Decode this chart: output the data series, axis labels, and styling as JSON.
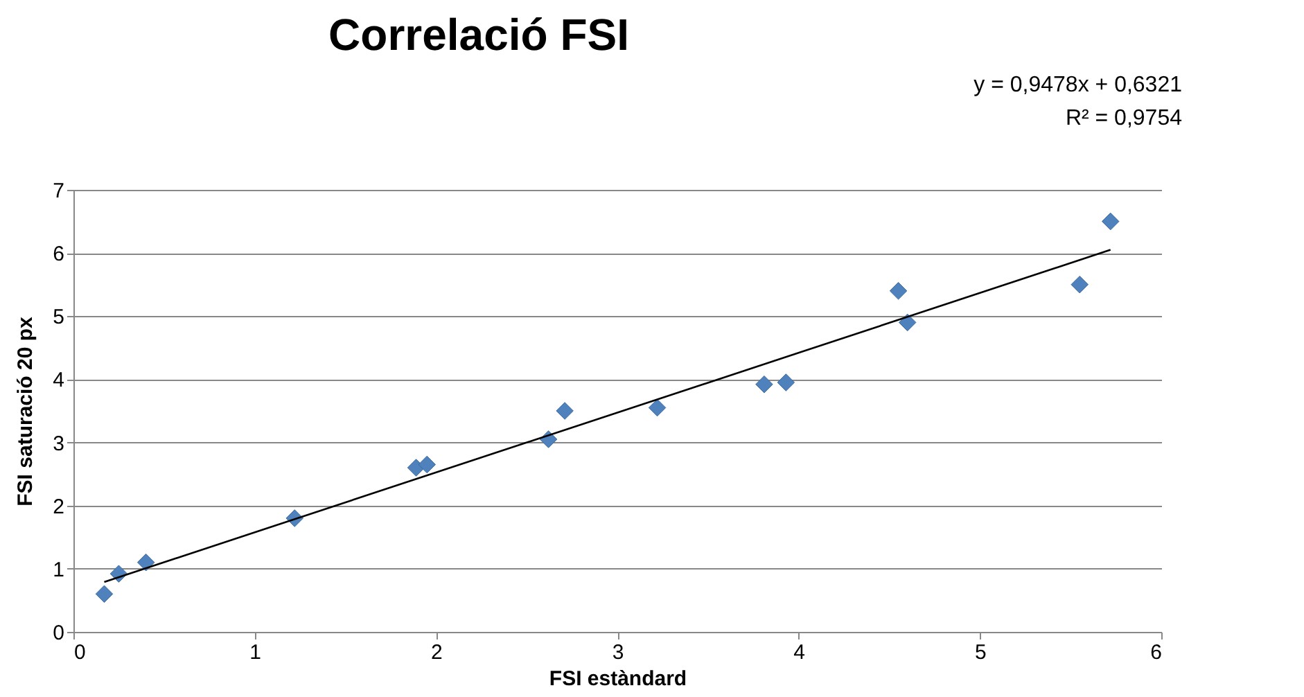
{
  "chart_data": {
    "type": "scatter",
    "title": "Correlació FSI",
    "xlabel": "FSI estàndard",
    "ylabel": "FSI saturació 20 px",
    "annotations": [
      "y = 0,9478x + 0,6321",
      "R² = 0,9754"
    ],
    "xlim": [
      0,
      6
    ],
    "xticks": [
      0,
      1,
      2,
      3,
      4,
      5,
      6
    ],
    "ylim": [
      0,
      7
    ],
    "yticks": [
      0,
      1,
      2,
      3,
      4,
      5,
      6,
      7
    ],
    "grid": "y",
    "marker": "diamond",
    "series": [
      {
        "color": "#4f81bd",
        "x": [
          0.17,
          0.25,
          0.4,
          1.22,
          1.89,
          1.95,
          2.62,
          2.71,
          3.22,
          3.81,
          3.93,
          4.55,
          4.6,
          5.55,
          5.72
        ],
        "values": [
          0.6,
          0.92,
          1.1,
          1.8,
          2.6,
          2.65,
          3.05,
          3.5,
          3.55,
          3.92,
          3.95,
          5.4,
          4.9,
          5.5,
          6.5
        ]
      },
      {
        "type": "line",
        "color": "#000000",
        "line_style": "solid",
        "marker": "none",
        "x": [
          0.17,
          5.72
        ],
        "values": [
          0.79,
          6.05
        ]
      }
    ]
  }
}
